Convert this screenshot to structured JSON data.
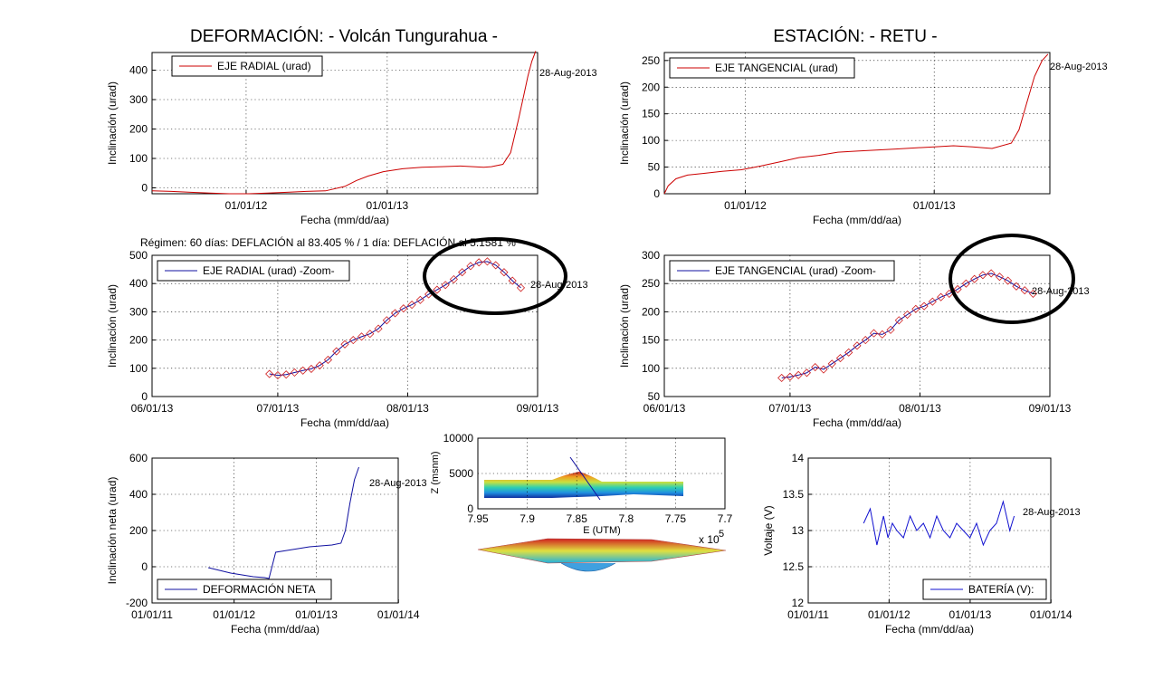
{
  "titles": {
    "left": "DEFORMACIÓN: - Volcán Tungurahua -",
    "right": "ESTACIÓN: - RETU -"
  },
  "regimen_text": "Régimen: 60 días: DEFLACIÓN al 83.405 % / 1 día: DEFLACIÓN al 5.1581 %",
  "chart_data": [
    {
      "id": "radial",
      "type": "line",
      "title": "",
      "xlabel": "Fecha (mm/dd/aa)",
      "ylabel": "Inclinación (urad)",
      "xlim": [
        0,
        1000
      ],
      "ylim": [
        -20,
        460
      ],
      "xticks": [
        {
          "x": 244,
          "label": "01/01/12"
        },
        {
          "x": 610,
          "label": "01/01/13"
        }
      ],
      "yticks": [
        0,
        100,
        200,
        300,
        400
      ],
      "color": "#cc0000",
      "legend": "EJE RADIAL (urad)",
      "annotation": "28-Aug-2013",
      "series": [
        {
          "x": [
            0,
            50,
            100,
            150,
            200,
            250,
            300,
            350,
            400,
            450,
            500,
            530,
            560,
            600,
            650,
            700,
            750,
            800,
            860,
            880,
            910,
            930,
            950,
            965,
            975,
            985,
            995
          ],
          "y": [
            -10,
            -12,
            -15,
            -18,
            -20,
            -20,
            -18,
            -15,
            -12,
            -10,
            5,
            25,
            40,
            55,
            65,
            70,
            72,
            74,
            70,
            72,
            80,
            120,
            230,
            320,
            380,
            430,
            465
          ]
        }
      ]
    },
    {
      "id": "tangencial",
      "type": "line",
      "title": "",
      "xlabel": "Fecha (mm/dd/aa)",
      "ylabel": "Inclinación (urad)",
      "xlim": [
        0,
        1000
      ],
      "ylim": [
        0,
        265
      ],
      "xticks": [
        {
          "x": 210,
          "label": "01/01/12"
        },
        {
          "x": 700,
          "label": "01/01/13"
        }
      ],
      "yticks": [
        0,
        50,
        100,
        150,
        200,
        250
      ],
      "color": "#cc0000",
      "legend": "EJE TANGENCIAL (urad)",
      "annotation": "28-Aug-2013",
      "series": [
        {
          "x": [
            0,
            10,
            30,
            60,
            100,
            150,
            200,
            250,
            300,
            350,
            400,
            450,
            500,
            550,
            600,
            650,
            700,
            750,
            800,
            850,
            900,
            920,
            940,
            960,
            980,
            995
          ],
          "y": [
            0,
            15,
            28,
            35,
            38,
            42,
            45,
            52,
            60,
            68,
            72,
            78,
            80,
            82,
            84,
            86,
            88,
            90,
            88,
            85,
            95,
            120,
            170,
            220,
            250,
            262
          ]
        }
      ]
    },
    {
      "id": "radial-zoom",
      "type": "line",
      "title": "",
      "xlabel": "Fecha (mm/dd/aa)",
      "ylabel": "Inclinación (urad)",
      "xlim": [
        0,
        92
      ],
      "ylim": [
        0,
        500
      ],
      "xticks": [
        {
          "x": 0,
          "label": "06/01/13"
        },
        {
          "x": 30,
          "label": "07/01/13"
        },
        {
          "x": 61,
          "label": "08/01/13"
        },
        {
          "x": 92,
          "label": "09/01/13"
        }
      ],
      "yticks": [
        0,
        100,
        200,
        300,
        400,
        500
      ],
      "color": "#1010a0",
      "legend": "EJE RADIAL (urad) -Zoom-",
      "annotation": "28-Aug-2013",
      "series": [
        {
          "x": [
            28,
            30,
            32,
            34,
            36,
            38,
            40,
            42,
            44,
            46,
            48,
            50,
            52,
            54,
            56,
            58,
            60,
            62,
            64,
            66,
            68,
            70,
            72,
            74,
            76,
            78,
            80,
            82,
            84,
            86,
            88
          ],
          "y": [
            80,
            75,
            78,
            85,
            92,
            98,
            110,
            130,
            160,
            185,
            200,
            212,
            222,
            240,
            270,
            295,
            312,
            325,
            342,
            362,
            378,
            395,
            415,
            440,
            462,
            475,
            478,
            465,
            440,
            410,
            385
          ]
        }
      ]
    },
    {
      "id": "tangencial-zoom",
      "type": "line",
      "title": "",
      "xlabel": "Fecha (mm/dd/aa)",
      "ylabel": "Inclinación (urad)",
      "xlim": [
        0,
        92
      ],
      "ylim": [
        50,
        300
      ],
      "xticks": [
        {
          "x": 0,
          "label": "06/01/13"
        },
        {
          "x": 30,
          "label": "07/01/13"
        },
        {
          "x": 61,
          "label": "08/01/13"
        },
        {
          "x": 92,
          "label": "09/01/13"
        }
      ],
      "yticks": [
        50,
        100,
        150,
        200,
        250,
        300
      ],
      "color": "#1010a0",
      "legend": "EJE TANGENCIAL (urad) -Zoom-",
      "annotation": "28-Aug-2013",
      "series": [
        {
          "x": [
            28,
            30,
            32,
            34,
            36,
            38,
            40,
            42,
            44,
            46,
            48,
            50,
            52,
            54,
            56,
            58,
            60,
            62,
            64,
            66,
            68,
            70,
            72,
            74,
            76,
            78,
            80,
            82,
            84,
            86,
            88
          ],
          "y": [
            83,
            85,
            88,
            92,
            102,
            98,
            108,
            118,
            128,
            140,
            150,
            162,
            160,
            168,
            185,
            195,
            205,
            210,
            218,
            226,
            232,
            240,
            250,
            258,
            265,
            268,
            262,
            255,
            245,
            238,
            232
          ]
        }
      ]
    },
    {
      "id": "deformacion-neta",
      "type": "line",
      "title": "",
      "xlabel": "Fecha (mm/dd/aa)",
      "ylabel": "Inclinación neta (urad)",
      "xlim": [
        0,
        1095
      ],
      "ylim": [
        -200,
        600
      ],
      "xticks": [
        {
          "x": 0,
          "label": "01/01/11"
        },
        {
          "x": 365,
          "label": "01/01/12"
        },
        {
          "x": 731,
          "label": "01/01/13"
        },
        {
          "x": 1096,
          "label": "01/01/14"
        }
      ],
      "yticks": [
        -200,
        0,
        200,
        400,
        600
      ],
      "color": "#1010a0",
      "legend": "DEFORMACIÓN NETA",
      "annotation": "28-Aug-2013",
      "series": [
        {
          "x": [
            250,
            300,
            350,
            400,
            450,
            500,
            520,
            550,
            600,
            650,
            700,
            750,
            800,
            840,
            860,
            880,
            900,
            920
          ],
          "y": [
            -5,
            -20,
            -35,
            -45,
            -55,
            -60,
            -65,
            80,
            90,
            100,
            110,
            115,
            120,
            130,
            200,
            350,
            480,
            550
          ]
        }
      ]
    },
    {
      "id": "bateria",
      "type": "line",
      "title": "",
      "xlabel": "Fecha (mm/dd/aa)",
      "ylabel": "Voltaje (V)",
      "xlim": [
        0,
        1095
      ],
      "ylim": [
        12,
        14
      ],
      "xticks": [
        {
          "x": 0,
          "label": "01/01/11"
        },
        {
          "x": 365,
          "label": "01/01/12"
        },
        {
          "x": 731,
          "label": "01/01/13"
        },
        {
          "x": 1096,
          "label": "01/01/14"
        }
      ],
      "yticks": [
        12,
        12.5,
        13,
        13.5,
        14
      ],
      "color": "#1010d0",
      "legend": "BATERÍA (V):",
      "annotation": "28-Aug-2013",
      "series": [
        {
          "x": [
            250,
            280,
            310,
            340,
            360,
            380,
            400,
            430,
            460,
            490,
            520,
            550,
            580,
            610,
            640,
            670,
            700,
            730,
            760,
            790,
            820,
            850,
            880,
            910,
            930
          ],
          "y": [
            13.1,
            13.3,
            12.8,
            13.2,
            12.9,
            13.1,
            13.0,
            12.9,
            13.2,
            13.0,
            13.1,
            12.9,
            13.2,
            13.0,
            12.9,
            13.1,
            13.0,
            12.9,
            13.1,
            12.8,
            13.0,
            13.1,
            13.4,
            13.0,
            13.2
          ]
        }
      ]
    },
    {
      "id": "perfil-3d",
      "type": "area",
      "title": "",
      "xlabel": "E (UTM)",
      "ylabel": "Z (msnm)",
      "exponent_label": "x 10",
      "exponent_sup": "5",
      "xlim": [
        7.95,
        7.7
      ],
      "ylim": [
        0,
        10000
      ],
      "xticks": [
        7.95,
        7.9,
        7.85,
        7.8,
        7.75,
        7.7
      ],
      "yticks": [
        0,
        5000,
        10000
      ]
    }
  ]
}
